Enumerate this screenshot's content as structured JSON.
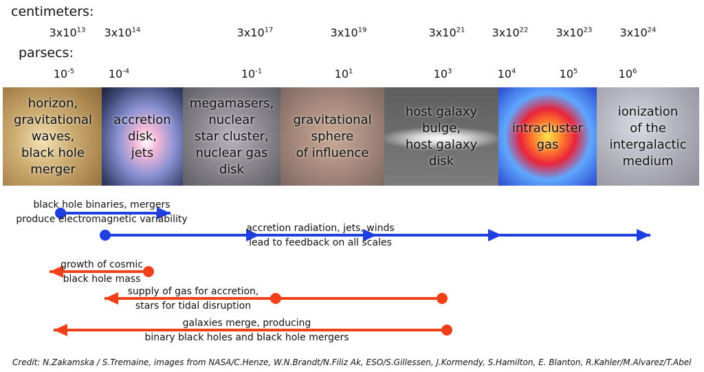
{
  "labels": {
    "centimeters": "centimeters:",
    "parsecs": "parsecs:"
  },
  "centimeters": [
    {
      "base": "3x10",
      "exp": "13"
    },
    {
      "base": "3x10",
      "exp": "14"
    },
    {
      "base": "3x10",
      "exp": "17"
    },
    {
      "base": "3x10",
      "exp": "19"
    },
    {
      "base": "3x10",
      "exp": "21"
    },
    {
      "base": "3x10",
      "exp": "22"
    },
    {
      "base": "3x10",
      "exp": "23"
    },
    {
      "base": "3x10",
      "exp": "24"
    }
  ],
  "parsecs": [
    {
      "base": "10",
      "exp": "-5"
    },
    {
      "base": "10",
      "exp": "-4"
    },
    {
      "base": "10",
      "exp": "-1"
    },
    {
      "base": "10",
      "exp": "1"
    },
    {
      "base": "10",
      "exp": "3"
    },
    {
      "base": "10",
      "exp": "4"
    },
    {
      "base": "10",
      "exp": "5"
    },
    {
      "base": "10",
      "exp": "6"
    }
  ],
  "panels": [
    {
      "text": "horizon,\ngravitational\nwaves,\nblack hole\nmerger",
      "bg": "#c9a66b"
    },
    {
      "text": "accretion\ndisk,\njets",
      "bg": "#7a86b8"
    },
    {
      "text": "megamasers,\nnuclear\nstar cluster,\nnuclear gas disk",
      "bg": "#8c8a8e"
    },
    {
      "text": "gravitational\nsphere\nof influence",
      "bg": "#a58a7a"
    },
    {
      "text": "host galaxy\nbulge,\nhost galaxy\ndisk",
      "bg": "#6e6e6e"
    },
    {
      "text": "intracluster\ngas",
      "bg": "#4a67d8"
    },
    {
      "text": "ionization\nof the\nintergalactic\nmedium",
      "bg": "#a9a9b0"
    }
  ],
  "arrows": [
    {
      "label": "black hole binaries, mergers\nproduce electromagnetic variability",
      "color": "#1f3fe0"
    },
    {
      "label": "accretion radiation, jets, winds\nlead to feedback on all scales",
      "color": "#1f3fe0"
    },
    {
      "label": "growth of cosmic\nblack hole mass",
      "color": "#f0401a"
    },
    {
      "label": "supply of gas for accretion,\nstars for tidal disruption",
      "color": "#f0401a"
    },
    {
      "label": "galaxies merge, producing\nbinary black holes and black hole mergers",
      "color": "#f0401a"
    }
  ],
  "credit": "Credit:  N.Zakamska / S.Tremaine, images from NASA/C.Henze, W.N.Brandt/N.Filiz Ak, ESO/S.Gillessen, J.Kormendy, S.Hamilton, E. Blanton, R.Kahler/M.Alvarez/T.Abel"
}
